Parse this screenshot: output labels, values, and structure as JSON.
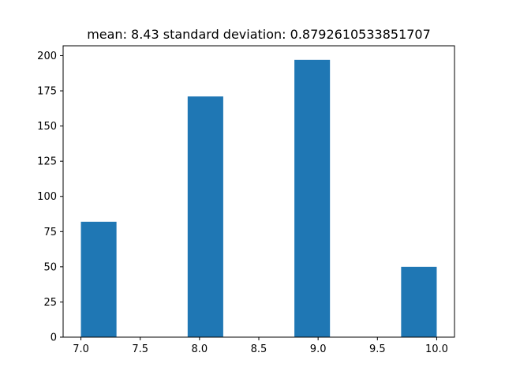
{
  "chart_data": {
    "type": "bar",
    "title": "mean: 8.43 standard deviation: 0.8792610533851707",
    "xlabel": "",
    "ylabel": "",
    "xlim": [
      6.85,
      10.15
    ],
    "ylim": [
      0,
      207
    ],
    "bar_color": "#1f77b4",
    "grid": false,
    "bins": [
      {
        "x0": 7.0,
        "x1": 7.3,
        "count": 82
      },
      {
        "x0": 7.3,
        "x1": 7.6,
        "count": 0
      },
      {
        "x0": 7.6,
        "x1": 7.9,
        "count": 0
      },
      {
        "x0": 7.9,
        "x1": 8.2,
        "count": 171
      },
      {
        "x0": 8.2,
        "x1": 8.5,
        "count": 0
      },
      {
        "x0": 8.5,
        "x1": 8.8,
        "count": 0
      },
      {
        "x0": 8.8,
        "x1": 9.1,
        "count": 197
      },
      {
        "x0": 9.1,
        "x1": 9.4,
        "count": 0
      },
      {
        "x0": 9.4,
        "x1": 9.7,
        "count": 0
      },
      {
        "x0": 9.7,
        "x1": 10.0,
        "count": 50
      }
    ],
    "x_ticks": [
      {
        "value": 7.0,
        "label": "7.0"
      },
      {
        "value": 7.5,
        "label": "7.5"
      },
      {
        "value": 8.0,
        "label": "8.0"
      },
      {
        "value": 8.5,
        "label": "8.5"
      },
      {
        "value": 9.0,
        "label": "9.0"
      },
      {
        "value": 9.5,
        "label": "9.5"
      },
      {
        "value": 10.0,
        "label": "10.0"
      }
    ],
    "y_ticks": [
      {
        "value": 0,
        "label": "0"
      },
      {
        "value": 25,
        "label": "25"
      },
      {
        "value": 50,
        "label": "50"
      },
      {
        "value": 75,
        "label": "75"
      },
      {
        "value": 100,
        "label": "100"
      },
      {
        "value": 125,
        "label": "125"
      },
      {
        "value": 150,
        "label": "150"
      },
      {
        "value": 175,
        "label": "175"
      },
      {
        "value": 200,
        "label": "200"
      }
    ]
  }
}
